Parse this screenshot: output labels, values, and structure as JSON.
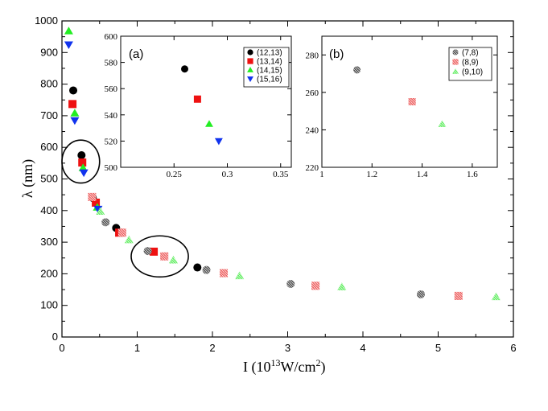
{
  "chart_data": {
    "type": "scatter",
    "xlabel": "I (10",
    "xlabel_exp": "13",
    "xlabel_unit": "W/cm",
    "xlabel_unit_exp": "2",
    "xlabel_close": ")",
    "ylabel": "λ (nm)",
    "xlim": [
      0,
      6
    ],
    "ylim": [
      0,
      1000
    ],
    "xticks": [
      0,
      1,
      2,
      3,
      4,
      5,
      6
    ],
    "yticks": [
      0,
      100,
      200,
      300,
      400,
      500,
      600,
      700,
      800,
      900,
      1000
    ],
    "series": [
      {
        "name": "(12,13)",
        "marker": "circle",
        "color": "#000000",
        "hatched": false,
        "points": [
          [
            0.15,
            780
          ],
          [
            0.26,
            575
          ],
          [
            0.41,
            440
          ],
          [
            0.72,
            345
          ],
          [
            1.8,
            220
          ]
        ]
      },
      {
        "name": "(13,14)",
        "marker": "square",
        "color": "#ee1111",
        "hatched": false,
        "points": [
          [
            0.14,
            737
          ],
          [
            0.27,
            552
          ],
          [
            0.45,
            425
          ],
          [
            0.76,
            330
          ],
          [
            1.22,
            270
          ]
        ]
      },
      {
        "name": "(14,15)",
        "marker": "triangle-up",
        "color": "#22ee22",
        "hatched": false,
        "points": [
          [
            0.09,
            968
          ],
          [
            0.17,
            708
          ],
          [
            0.28,
            535
          ],
          [
            0.47,
            410
          ]
        ]
      },
      {
        "name": "(15,16)",
        "marker": "triangle-down",
        "color": "#1133ee",
        "hatched": false,
        "points": [
          [
            0.09,
            925
          ],
          [
            0.17,
            685
          ],
          [
            0.29,
            520
          ],
          [
            0.48,
            405
          ]
        ]
      },
      {
        "name": "(7,8)",
        "marker": "circle",
        "color": "#555555",
        "hatched": true,
        "points": [
          [
            0.58,
            363
          ],
          [
            1.14,
            272
          ],
          [
            1.92,
            212
          ],
          [
            3.04,
            168
          ],
          [
            4.77,
            135
          ]
        ]
      },
      {
        "name": "(8,9)",
        "marker": "square",
        "color": "#ee6666",
        "hatched": true,
        "points": [
          [
            0.4,
            443
          ],
          [
            0.8,
            330
          ],
          [
            1.36,
            255
          ],
          [
            2.15,
            202
          ],
          [
            3.37,
            162
          ],
          [
            5.27,
            130
          ]
        ]
      },
      {
        "name": "(9,10)",
        "marker": "triangle-up",
        "color": "#66ee66",
        "hatched": true,
        "points": [
          [
            0.51,
            397
          ],
          [
            0.89,
            307
          ],
          [
            1.48,
            243
          ],
          [
            2.36,
            193
          ],
          [
            3.72,
            158
          ],
          [
            5.77,
            127
          ]
        ]
      }
    ],
    "circles": [
      {
        "cx": 0.25,
        "cy": 555,
        "rx": 0.25,
        "ry": 68
      },
      {
        "cx": 1.3,
        "cy": 255,
        "rx": 0.38,
        "ry": 65
      }
    ],
    "insets": [
      {
        "label": "(a)",
        "xlim": [
          0.2,
          0.36
        ],
        "ylim": [
          500,
          600
        ],
        "xticks": [
          0.25,
          0.3,
          0.35
        ],
        "xtick_labels": [
          "0.25",
          "0.3",
          "0.35"
        ],
        "yticks": [
          500,
          520,
          540,
          560,
          580,
          600
        ],
        "series_names": [
          "(12,13)",
          "(13,14)",
          "(14,15)",
          "(15,16)"
        ],
        "points": [
          [
            0.26,
            575
          ],
          [
            0.272,
            552
          ],
          [
            0.283,
            533
          ],
          [
            0.292,
            520
          ]
        ]
      },
      {
        "label": "(b)",
        "xlim": [
          1.0,
          1.7
        ],
        "ylim": [
          220,
          290
        ],
        "xticks": [
          1,
          1.2,
          1.4,
          1.6
        ],
        "xtick_labels": [
          "1",
          "1.2",
          "1.4",
          "1.6"
        ],
        "yticks": [
          220,
          240,
          260,
          280
        ],
        "series_names": [
          "(7,8)",
          "(8,9)",
          "(9,10)"
        ],
        "points": [
          [
            1.14,
            272
          ],
          [
            1.36,
            255
          ],
          [
            1.48,
            243
          ]
        ]
      }
    ]
  }
}
